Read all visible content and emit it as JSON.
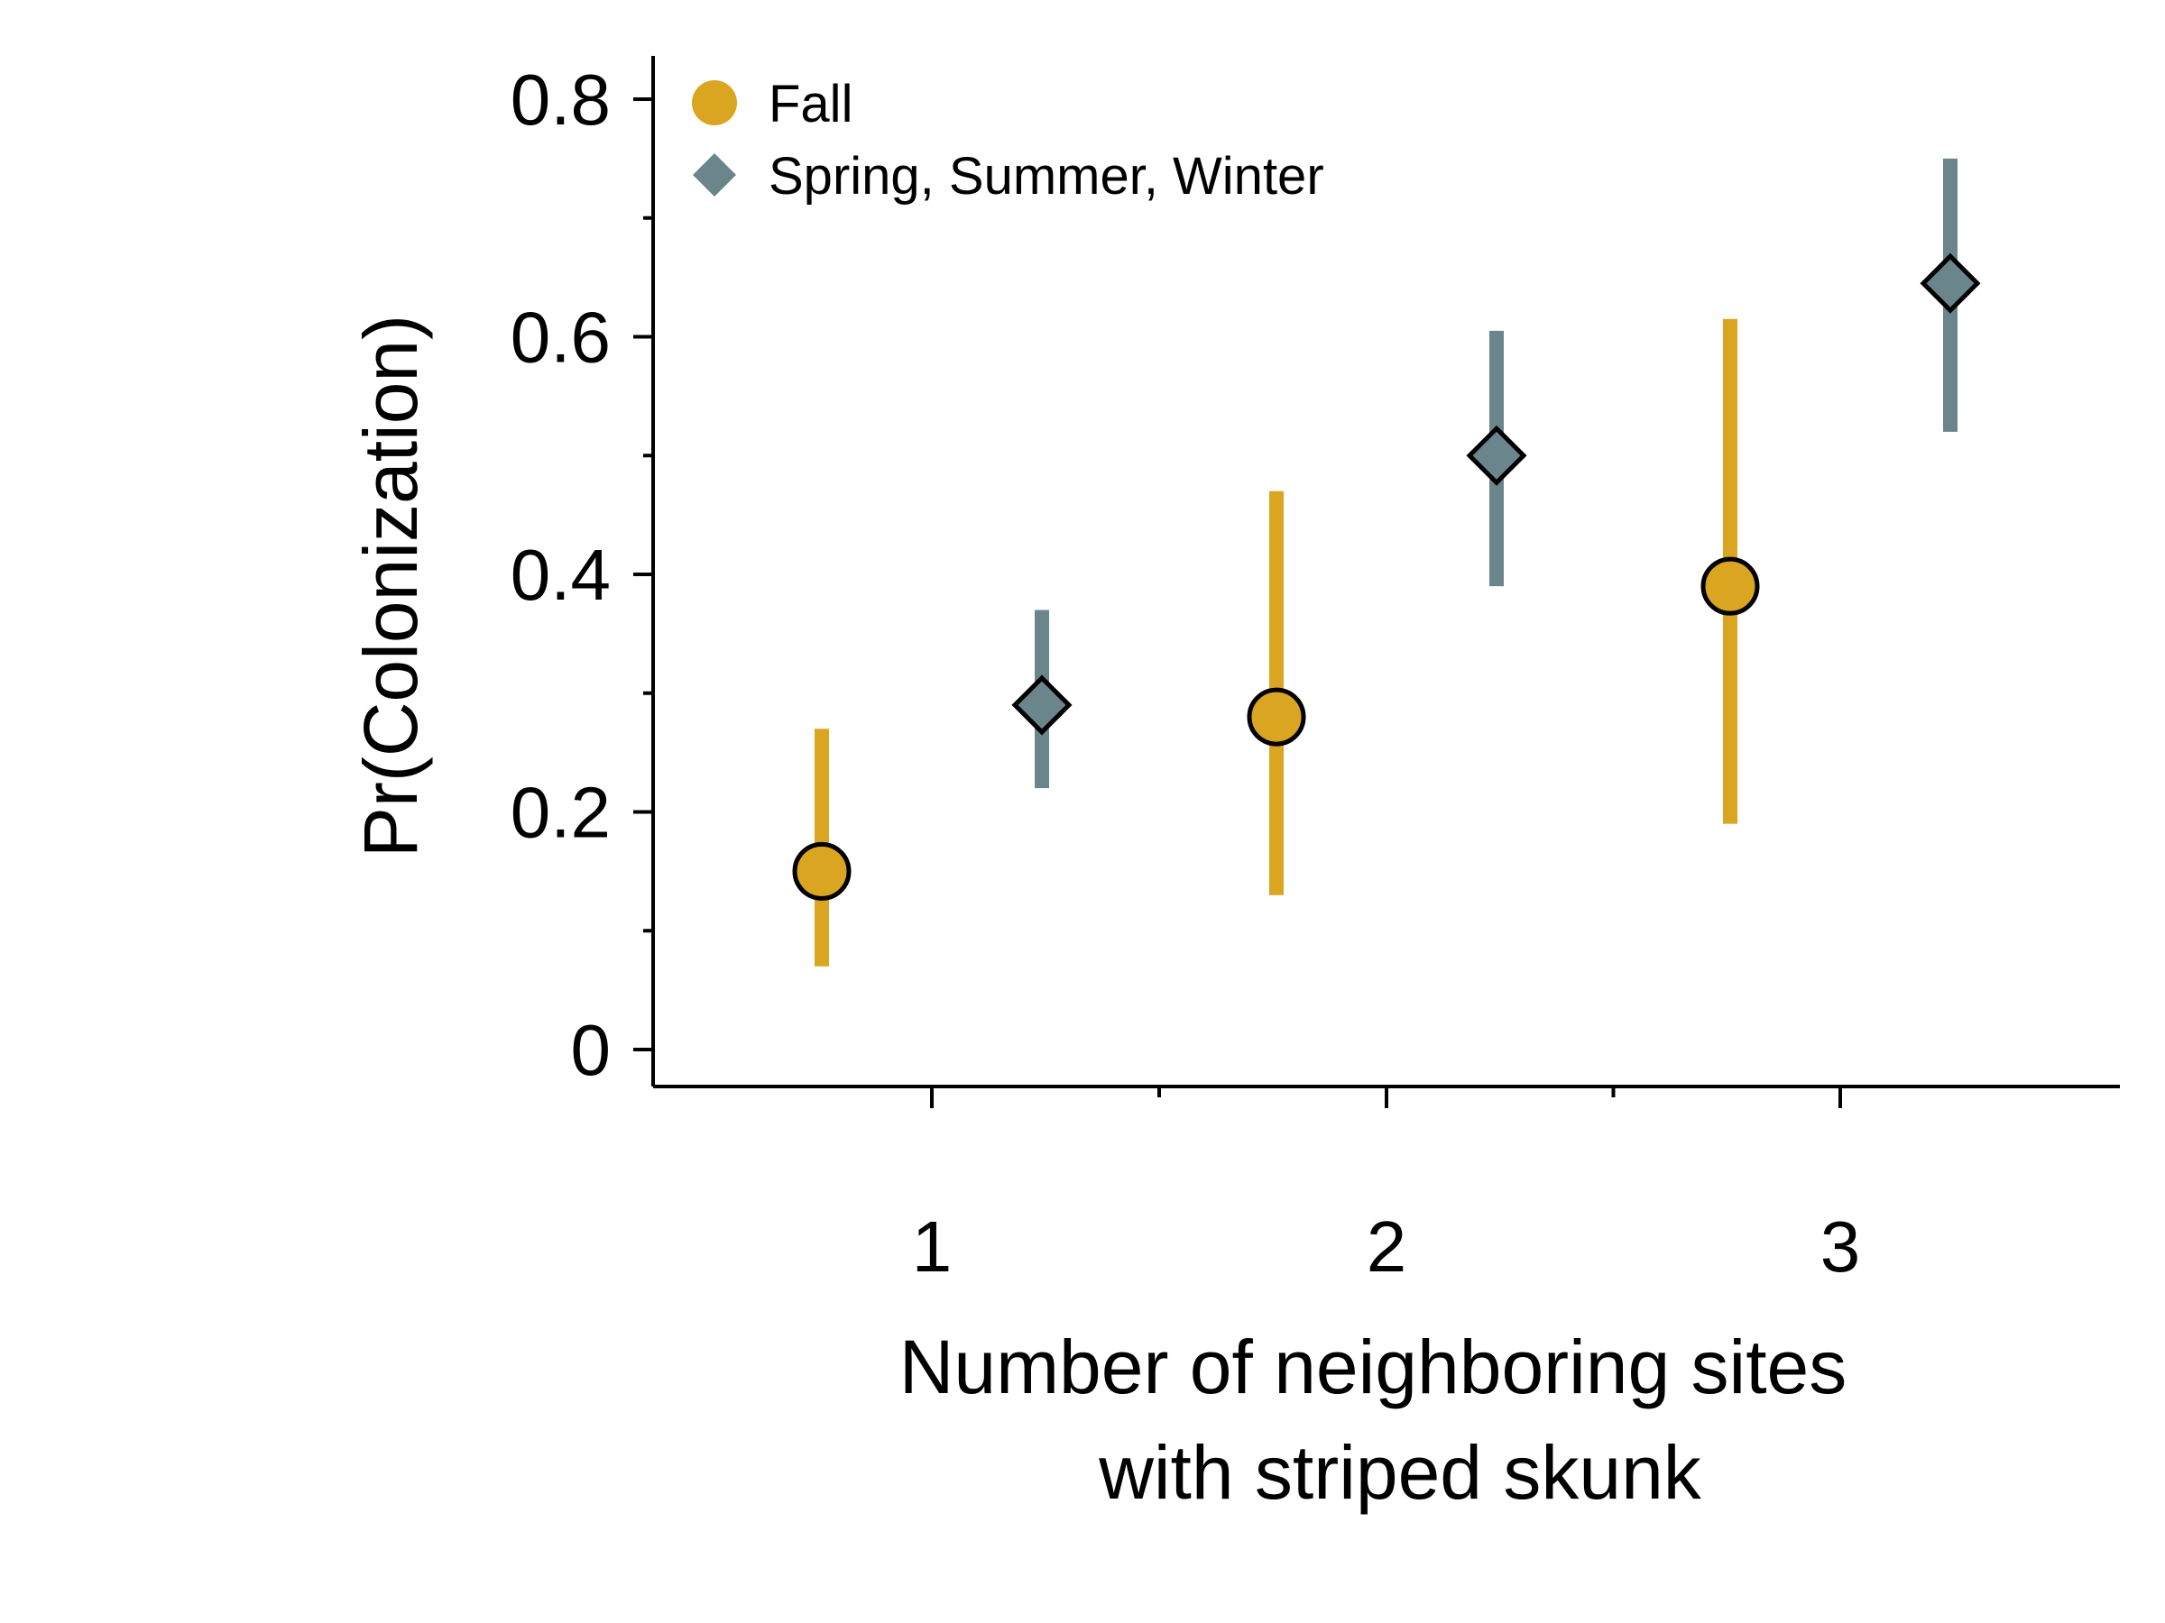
{
  "chart_data": {
    "type": "scatter",
    "xlabel": [
      "Number of neighboring sites",
      "with striped skunk"
    ],
    "ylabel": "Pr(Colonization)",
    "categories": [
      "1",
      "2",
      "3"
    ],
    "ylim": [
      0,
      0.8
    ],
    "yticks": [
      "0",
      "0.2",
      "0.4",
      "0.6",
      "0.8"
    ],
    "grid": false,
    "legend_position": "top-left",
    "series": [
      {
        "name": "Fall",
        "marker": "circle",
        "color": "#DAA520",
        "values": [
          0.15,
          0.28,
          0.39
        ],
        "lower": [
          0.07,
          0.13,
          0.19
        ],
        "upper": [
          0.27,
          0.47,
          0.615
        ]
      },
      {
        "name": "Spring, Summer, Winter",
        "marker": "diamond",
        "color": "#6B858D",
        "values": [
          0.29,
          0.5,
          0.645
        ],
        "lower": [
          0.22,
          0.39,
          0.52
        ],
        "upper": [
          0.37,
          0.605,
          0.75
        ]
      }
    ]
  }
}
